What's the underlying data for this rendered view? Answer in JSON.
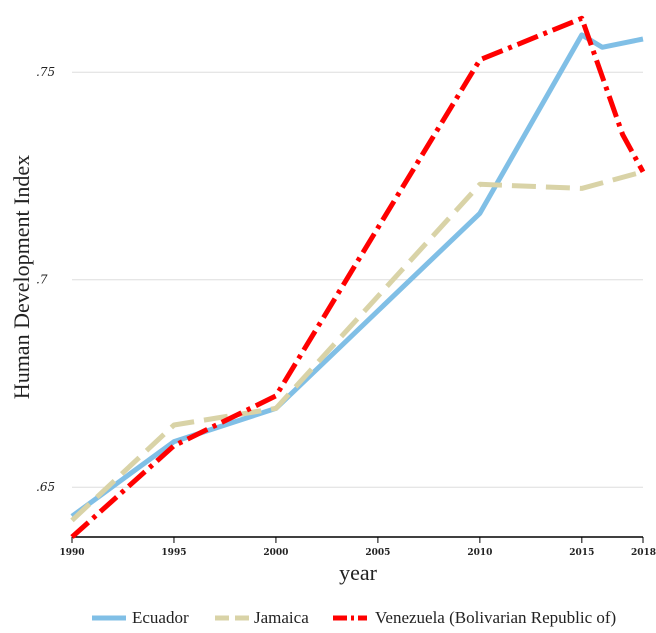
{
  "chart_data": {
    "type": "line",
    "title": "",
    "xlabel": "year",
    "ylabel": "Human Development Index",
    "xlim": [
      1990,
      2018
    ],
    "ylim": [
      0.638,
      0.765
    ],
    "x_ticks": [
      1990,
      1995,
      2000,
      2005,
      2010,
      2015,
      2018
    ],
    "x_tick_labels": [
      "1990",
      "1995",
      "2000",
      "2005",
      "2010",
      "2015",
      "2018"
    ],
    "y_ticks": [
      0.65,
      0.7,
      0.75
    ],
    "y_tick_labels": [
      ".65",
      ".7",
      ".75"
    ],
    "grid": "horizontal",
    "legend_position": "bottom",
    "series": [
      {
        "name": "Ecuador",
        "color": "#80bfe6",
        "style": "solid",
        "x": [
          1990,
          1995,
          2000,
          2010,
          2015,
          2016,
          2018
        ],
        "y": [
          0.643,
          0.661,
          0.669,
          0.716,
          0.759,
          0.756,
          0.758
        ]
      },
      {
        "name": "Jamaica",
        "color": "#d9d3a7",
        "style": "dashed",
        "x": [
          1990,
          1995,
          2000,
          2010,
          2015,
          2018
        ],
        "y": [
          0.642,
          0.665,
          0.669,
          0.723,
          0.722,
          0.726
        ]
      },
      {
        "name": "Venezuela (Bolivarian Republic of)",
        "color": "#ff0000",
        "style": "dashdot",
        "x": [
          1990,
          1995,
          2000,
          2010,
          2015,
          2017,
          2018
        ],
        "y": [
          0.638,
          0.66,
          0.672,
          0.753,
          0.763,
          0.735,
          0.726
        ]
      }
    ]
  }
}
